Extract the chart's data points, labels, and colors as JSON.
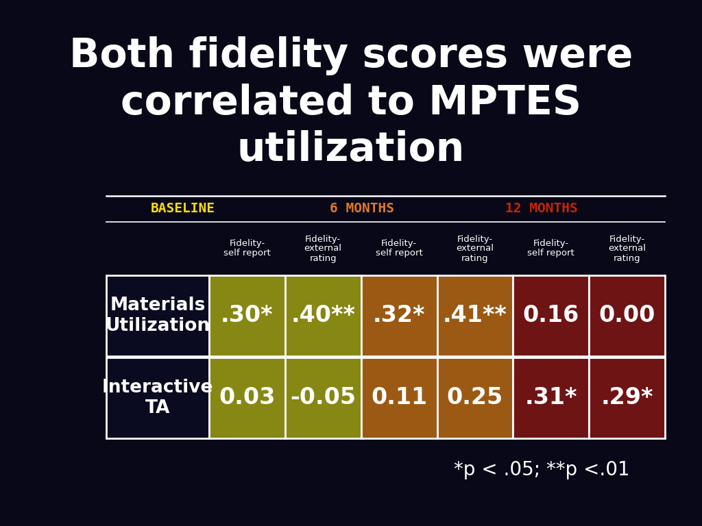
{
  "title": "Both fidelity scores were\ncorrelated to MPTES\nutilization",
  "title_color": "#ffffff",
  "title_fontsize": 42,
  "background_color": "#080818",
  "period_labels": [
    "BASELINE",
    "6 MONTHS",
    "12 MONTHS"
  ],
  "period_colors": [
    "#ffdd00",
    "#e07828",
    "#cc2200"
  ],
  "col_headers": [
    "Fidelity-\nself report",
    "Fidelity-\nexternal\nrating",
    "Fidelity-\nself report",
    "Fidelity-\nexternal\nrating",
    "Fidelity-\nself report",
    "Fidelity-\nexternal\nrating"
  ],
  "row_labels": [
    "Materials\nUtilization",
    "Interactive\nTA"
  ],
  "table_values": [
    [
      ".30*",
      ".40**",
      ".32*",
      ".41**",
      "0.16",
      "0.00"
    ],
    [
      "0.03",
      "-0.05",
      "0.11",
      "0.25",
      ".31*",
      ".29*"
    ]
  ],
  "cell_colors": [
    [
      "#878714",
      "#878714",
      "#9b5914",
      "#9b5914",
      "#6e1414",
      "#6e1414"
    ],
    [
      "#878714",
      "#878714",
      "#9b5914",
      "#9b5914",
      "#6e1414",
      "#6e1414"
    ]
  ],
  "footnote": "*p < .05; **p <.01"
}
